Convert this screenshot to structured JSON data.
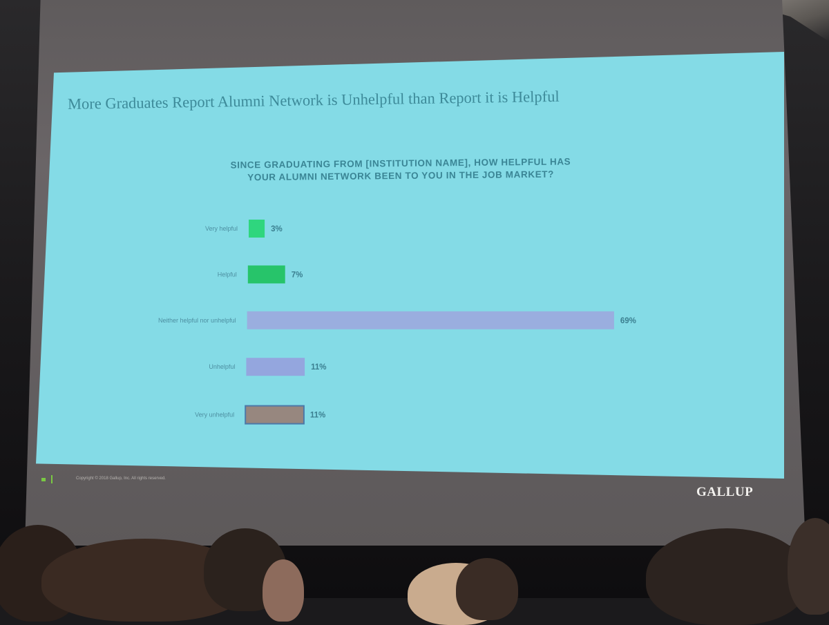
{
  "slide": {
    "title": "More Graduates Report Alumni Network is Unhelpful than Report it is Helpful",
    "question_line1": "SINCE GRADUATING FROM [INSTITUTION NAME], HOW HELPFUL HAS",
    "question_line2": "YOUR ALUMNI NETWORK BEEN TO YOU IN THE JOB MARKET?",
    "copyright": "Copyright © 2018 Gallup, Inc. All rights reserved.",
    "brand": "GALLUP"
  },
  "chart_data": {
    "type": "bar",
    "orientation": "horizontal",
    "title": "",
    "xlabel": "",
    "ylabel": "",
    "categories": [
      "Very helpful",
      "Helpful",
      "Neither helpful nor unhelpful",
      "Unhelpful",
      "Very unhelpful"
    ],
    "values": [
      3,
      7,
      69,
      11,
      11
    ],
    "value_labels": [
      "3%",
      "7%",
      "69%",
      "11%",
      "11%"
    ],
    "colors": [
      "#2fd67e",
      "#27c46a",
      "#9aaedf",
      "#94a6de",
      "#97877f"
    ],
    "grid": false,
    "legend": "none"
  },
  "colors": {
    "slide_background": "#84dbe6",
    "title_color": "#3d8a99",
    "room_background": "#1b1a1c"
  }
}
